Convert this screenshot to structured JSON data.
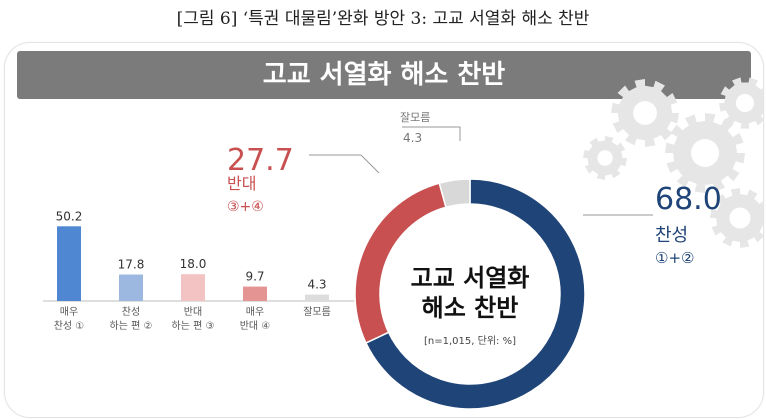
{
  "caption": "[그림 6] ‘특권 대물림’완화 방안 3: 고교 서열화 해소 찬반",
  "colors": {
    "banner_bg": "#7b7b7b",
    "favor": "#1f4477",
    "oppose": "#c85050",
    "dontknow": "#d8d8d8",
    "gear": "#e6e6e6"
  },
  "chart_data": [
    {
      "type": "bar",
      "categories": [
        "매우\n찬성 ①",
        "찬성\n하는 편 ②",
        "반대\n하는 편 ③",
        "매우\n반대 ④",
        "잘모름"
      ],
      "values": [
        50.2,
        17.8,
        18.0,
        9.7,
        4.3
      ],
      "value_labels": [
        "50.2",
        "17.8",
        "18.0",
        "9.7",
        "4.3"
      ],
      "bar_colors": [
        "#4f87d3",
        "#9cb8e0",
        "#f3c3c3",
        "#e59494",
        "#dcdcdc"
      ],
      "ylim": [
        0,
        60
      ]
    },
    {
      "type": "pie",
      "donut": true,
      "title": "고교 서열화 해소 찬반",
      "banner_title": "고교 서열화\n해소 찬반",
      "note": "[n=1,015, 단위: %]",
      "slices": [
        {
          "label": "찬성",
          "sub": "①+②",
          "value": 68.0,
          "value_label": "68.0",
          "color": "#1f4477"
        },
        {
          "label": "반대",
          "sub": "③+④",
          "value": 27.7,
          "value_label": "27.7",
          "color": "#c85050"
        },
        {
          "label": "잘모름",
          "sub": "",
          "value": 4.3,
          "value_label": "4.3",
          "color": "#d8d8d8"
        }
      ]
    }
  ]
}
